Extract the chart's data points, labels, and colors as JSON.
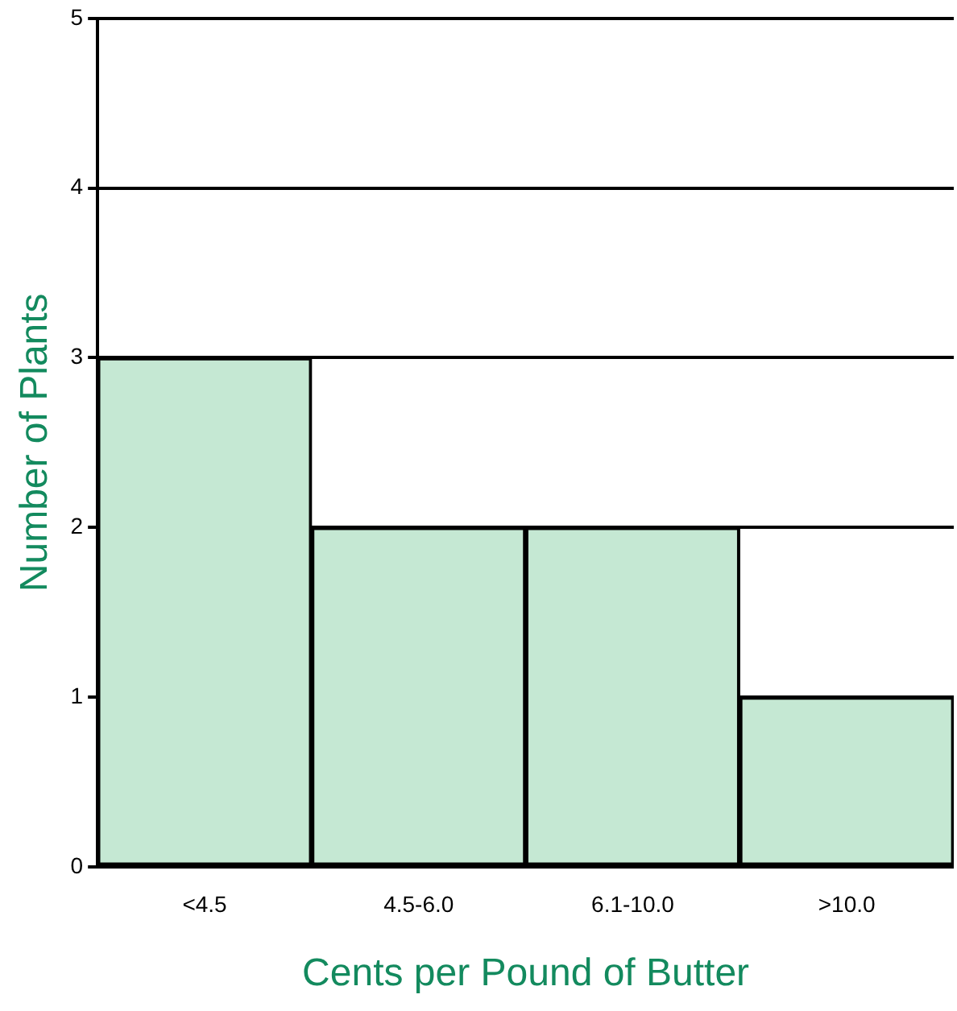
{
  "chart_data": {
    "type": "bar",
    "xlabel": "Cents per Pound of Butter",
    "ylabel": "Number of Plants",
    "categories": [
      "<4.5",
      "4.5-6.0",
      "6.1-10.0",
      ">10.0"
    ],
    "values": [
      3,
      2,
      2,
      1
    ],
    "color": "#c5e8d3",
    "ylim": [
      0,
      5
    ],
    "yticks": [
      0,
      1,
      2,
      3,
      4,
      5
    ],
    "grid": "y",
    "legend": false
  }
}
